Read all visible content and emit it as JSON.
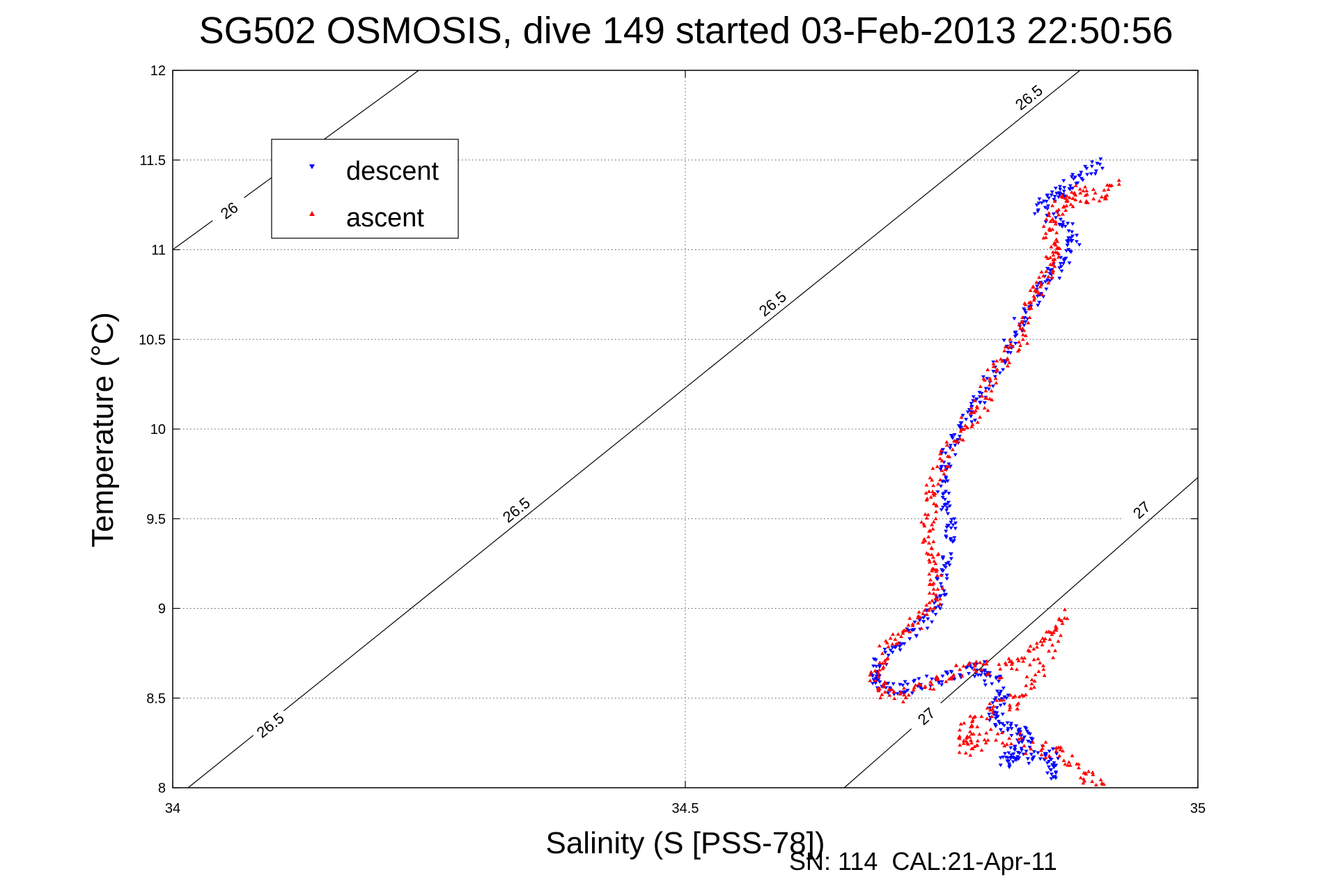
{
  "chart_data": {
    "type": "scatter",
    "title": "SG502 OSMOSIS, dive 149 started 03-Feb-2013 22:50:56",
    "xlabel": "Salinity (S [PSS-78])",
    "ylabel": "Temperature (°C)",
    "xlim": [
      34,
      35
    ],
    "ylim": [
      8,
      12
    ],
    "xticks": [
      "34",
      "34.5",
      "35"
    ],
    "yticks": [
      "8",
      "8.5",
      "9",
      "9.5",
      "10",
      "10.5",
      "11",
      "11.5",
      "12"
    ],
    "grid": true,
    "legend_position": "top-left",
    "footer": "SN: 114  CAL:21-Apr-11",
    "isopycnals": [
      {
        "label": "26",
        "points": [
          [
            34.0,
            11.0
          ],
          [
            34.24,
            12.0
          ]
        ],
        "label_at": [
          34.055,
          11.22
        ]
      },
      {
        "label": "26.5",
        "points": [
          [
            34.015,
            8.0
          ],
          [
            34.885,
            12.0
          ]
        ],
        "label_at": [
          34.095,
          8.35
        ]
      },
      {
        "label": "26.5",
        "label_at": [
          34.335,
          9.55
        ]
      },
      {
        "label": "26.5",
        "label_at": [
          34.585,
          10.7
        ]
      },
      {
        "label": "26.5",
        "label_at": [
          34.835,
          11.85
        ]
      },
      {
        "label": "27",
        "points": [
          [
            34.655,
            8.0
          ],
          [
            35.0,
            9.73
          ]
        ],
        "label_at": [
          34.735,
          8.4
        ]
      },
      {
        "label": "27",
        "label_at": [
          34.945,
          9.55
        ]
      }
    ],
    "series": [
      {
        "name": "descent",
        "color": "#0000ff",
        "marker": "triangle-down",
        "path": [
          [
            34.905,
            11.47
          ],
          [
            34.885,
            11.42
          ],
          [
            34.87,
            11.35
          ],
          [
            34.86,
            11.3
          ],
          [
            34.845,
            11.22
          ],
          [
            34.87,
            11.15
          ],
          [
            34.88,
            11.05
          ],
          [
            34.87,
            10.95
          ],
          [
            34.855,
            10.85
          ],
          [
            34.845,
            10.75
          ],
          [
            34.83,
            10.62
          ],
          [
            34.82,
            10.5
          ],
          [
            34.805,
            10.35
          ],
          [
            34.79,
            10.2
          ],
          [
            34.78,
            10.1
          ],
          [
            34.765,
            9.98
          ],
          [
            34.755,
            9.85
          ],
          [
            34.75,
            9.72
          ],
          [
            34.755,
            9.58
          ],
          [
            34.76,
            9.45
          ],
          [
            34.755,
            9.3
          ],
          [
            34.75,
            9.15
          ],
          [
            34.745,
            9.0
          ],
          [
            34.73,
            8.92
          ],
          [
            34.71,
            8.82
          ],
          [
            34.69,
            8.72
          ],
          [
            34.685,
            8.6
          ],
          [
            34.7,
            8.55
          ],
          [
            34.72,
            8.57
          ],
          [
            34.745,
            8.6
          ],
          [
            34.77,
            8.65
          ],
          [
            34.79,
            8.67
          ],
          [
            34.8,
            8.6
          ],
          [
            34.81,
            8.5
          ],
          [
            34.8,
            8.4
          ],
          [
            34.81,
            8.33
          ],
          [
            34.83,
            8.32
          ],
          [
            34.835,
            8.25
          ],
          [
            34.82,
            8.2
          ],
          [
            34.81,
            8.15
          ],
          [
            34.83,
            8.17
          ],
          [
            34.855,
            8.2
          ],
          [
            34.86,
            8.12
          ],
          [
            34.855,
            8.08
          ]
        ],
        "spread_t": 0.04,
        "spread_s": 0.006
      },
      {
        "name": "ascent",
        "color": "#ff0000",
        "marker": "triangle-up",
        "path": [
          [
            34.92,
            11.35
          ],
          [
            34.9,
            11.3
          ],
          [
            34.885,
            11.32
          ],
          [
            34.87,
            11.27
          ],
          [
            34.86,
            11.2
          ],
          [
            34.855,
            11.1
          ],
          [
            34.86,
            11.0
          ],
          [
            34.855,
            10.9
          ],
          [
            34.845,
            10.8
          ],
          [
            34.835,
            10.7
          ],
          [
            34.83,
            10.55
          ],
          [
            34.815,
            10.42
          ],
          [
            34.8,
            10.3
          ],
          [
            34.79,
            10.15
          ],
          [
            34.775,
            10.03
          ],
          [
            34.76,
            9.9
          ],
          [
            34.745,
            9.75
          ],
          [
            34.74,
            9.6
          ],
          [
            34.735,
            9.45
          ],
          [
            34.74,
            9.3
          ],
          [
            34.745,
            9.2
          ],
          [
            34.745,
            9.05
          ],
          [
            34.73,
            8.95
          ],
          [
            34.71,
            8.85
          ],
          [
            34.695,
            8.75
          ],
          [
            34.685,
            8.6
          ],
          [
            34.7,
            8.51
          ],
          [
            34.72,
            8.53
          ],
          [
            34.75,
            8.6
          ],
          [
            34.775,
            8.7
          ],
          [
            34.8,
            8.65
          ],
          [
            34.83,
            8.7
          ],
          [
            34.85,
            8.8
          ],
          [
            34.87,
            8.95
          ],
          [
            34.85,
            8.7
          ],
          [
            34.83,
            8.5
          ],
          [
            34.81,
            8.45
          ],
          [
            34.78,
            8.38
          ],
          [
            34.77,
            8.3
          ],
          [
            34.775,
            8.2
          ],
          [
            34.8,
            8.3
          ],
          [
            34.84,
            8.22
          ],
          [
            34.87,
            8.18
          ],
          [
            34.89,
            8.05
          ],
          [
            34.905,
            8.04
          ]
        ],
        "spread_t": 0.045,
        "spread_s": 0.007
      }
    ]
  }
}
